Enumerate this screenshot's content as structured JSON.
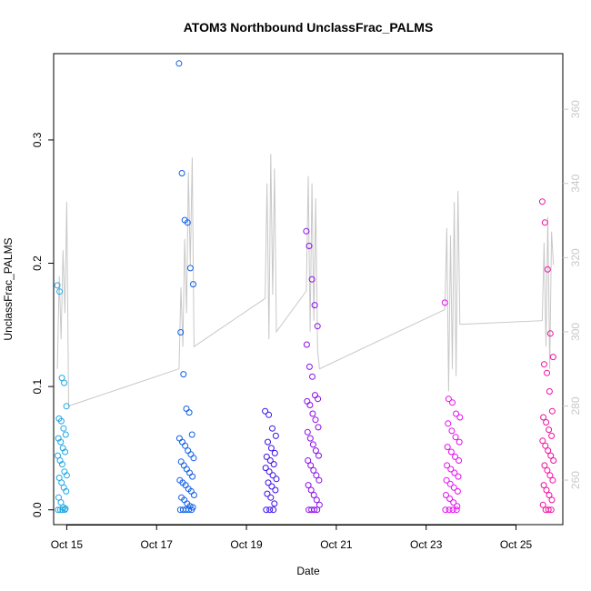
{
  "chart_data": {
    "type": "scatter",
    "title": "ATOM3 Northbound UnclassFrac_PALMS",
    "xlabel": "Date",
    "ylabel": "UnclassFrac_PALMS",
    "x_ticks": [
      "Oct 15",
      "Oct 17",
      "Oct 19",
      "Oct 21",
      "Oct 23",
      "Oct 25"
    ],
    "xlim": [
      "2017-10-14T17:00",
      "2017-10-26T01:00"
    ],
    "ylim": [
      -0.012,
      0.37
    ],
    "y_ticks": [
      0.0,
      0.1,
      0.2,
      0.3
    ],
    "y_tick_labels": [
      "0.0",
      "0.1",
      "0.2",
      "0.3"
    ],
    "y2lim": [
      248,
      375
    ],
    "y2_ticks": [
      260,
      280,
      300,
      320,
      340,
      360
    ],
    "y2_tick_labels": [
      "260",
      "280",
      "300",
      "320",
      "340",
      "360"
    ],
    "y2_color": "#c8c8c8",
    "point_colors": [
      "#1fa8e6",
      "#0f5fe8",
      "#3a10e6",
      "#8a0ee8",
      "#e30ef0",
      "#f20ea0"
    ],
    "grid": false,
    "legend": "none",
    "series": [
      {
        "x_range": [
          "2017-10-14T19:00",
          "2017-10-15T00:00"
        ],
        "points": [
          0.182,
          0.177,
          0.107,
          0.103,
          0.084,
          0.074,
          0.072,
          0.066,
          0.061,
          0.058,
          0.055,
          0.05,
          0.047,
          0.044,
          0.04,
          0.037,
          0.031,
          0.028,
          0.026,
          0.022,
          0.018,
          0.015,
          0.01,
          0.006,
          0.002,
          0.001,
          0.0,
          0.0,
          0.0,
          0.0
        ]
      },
      {
        "x_range": [
          "2017-10-17T12:00",
          "2017-10-17T20:00"
        ],
        "points": [
          0.362,
          0.273,
          0.235,
          0.233,
          0.196,
          0.183,
          0.144,
          0.11,
          0.082,
          0.079,
          0.061,
          0.058,
          0.055,
          0.052,
          0.048,
          0.045,
          0.042,
          0.039,
          0.036,
          0.033,
          0.03,
          0.027,
          0.024,
          0.022,
          0.02,
          0.017,
          0.015,
          0.012,
          0.01,
          0.008,
          0.005,
          0.003,
          0.002,
          0.0,
          0.0,
          0.0,
          0.0,
          0.0
        ]
      },
      {
        "x_range": [
          "2017-10-19T10:00",
          "2017-10-19T16:00"
        ],
        "points": [
          0.08,
          0.077,
          0.066,
          0.06,
          0.055,
          0.05,
          0.046,
          0.043,
          0.04,
          0.037,
          0.034,
          0.031,
          0.028,
          0.025,
          0.022,
          0.019,
          0.016,
          0.013,
          0.01,
          0.005,
          0.0,
          0.0,
          0.0
        ]
      },
      {
        "x_range": [
          "2017-10-20T08:00",
          "2017-10-20T15:00"
        ],
        "points": [
          0.226,
          0.214,
          0.187,
          0.166,
          0.149,
          0.134,
          0.116,
          0.108,
          0.093,
          0.09,
          0.088,
          0.085,
          0.078,
          0.073,
          0.067,
          0.063,
          0.058,
          0.053,
          0.048,
          0.044,
          0.04,
          0.036,
          0.032,
          0.028,
          0.024,
          0.02,
          0.016,
          0.012,
          0.008,
          0.004,
          0.0,
          0.0,
          0.0,
          0.0
        ]
      },
      {
        "x_range": [
          "2017-10-23T10:00",
          "2017-10-23T18:00"
        ],
        "points": [
          0.168,
          0.09,
          0.087,
          0.078,
          0.075,
          0.07,
          0.064,
          0.059,
          0.055,
          0.051,
          0.047,
          0.043,
          0.04,
          0.036,
          0.033,
          0.03,
          0.027,
          0.024,
          0.021,
          0.018,
          0.015,
          0.012,
          0.009,
          0.006,
          0.003,
          0.0,
          0.0,
          0.0,
          0.0
        ]
      },
      {
        "x_range": [
          "2017-10-25T14:00",
          "2017-10-25T20:00"
        ],
        "points": [
          0.25,
          0.233,
          0.195,
          0.143,
          0.124,
          0.118,
          0.111,
          0.096,
          0.08,
          0.075,
          0.071,
          0.065,
          0.06,
          0.056,
          0.052,
          0.048,
          0.044,
          0.04,
          0.036,
          0.032,
          0.028,
          0.024,
          0.02,
          0.016,
          0.012,
          0.008,
          0.004,
          0.0,
          0.0,
          0.0
        ]
      }
    ],
    "secondary_series": {
      "axis": "right",
      "color": "#c8c8c8",
      "points": [
        [
          "2017-10-14T19:00",
          290
        ],
        [
          "2017-10-14T20:00",
          315
        ],
        [
          "2017-10-14T21:00",
          298
        ],
        [
          "2017-10-14T22:00",
          322
        ],
        [
          "2017-10-14T23:00",
          305
        ],
        [
          "2017-10-15T00:00",
          335
        ],
        [
          "2017-10-15T01:00",
          280
        ],
        [
          "2017-10-17T12:00",
          290
        ],
        [
          "2017-10-17T13:00",
          312
        ],
        [
          "2017-10-17T14:00",
          296
        ],
        [
          "2017-10-17T15:00",
          325
        ],
        [
          "2017-10-17T16:00",
          305
        ],
        [
          "2017-10-17T17:00",
          343
        ],
        [
          "2017-10-17T18:00",
          318
        ],
        [
          "2017-10-17T19:00",
          347
        ],
        [
          "2017-10-17T20:00",
          296
        ],
        [
          "2017-10-19T10:00",
          309
        ],
        [
          "2017-10-19T11:00",
          340
        ],
        [
          "2017-10-19T12:00",
          298
        ],
        [
          "2017-10-19T13:00",
          348
        ],
        [
          "2017-10-19T14:00",
          310
        ],
        [
          "2017-10-19T15:00",
          344
        ],
        [
          "2017-10-19T16:00",
          300
        ],
        [
          "2017-10-20T08:00",
          311
        ],
        [
          "2017-10-20T09:00",
          342
        ],
        [
          "2017-10-20T10:00",
          300
        ],
        [
          "2017-10-20T11:00",
          340
        ],
        [
          "2017-10-20T12:00",
          303
        ],
        [
          "2017-10-20T13:00",
          336
        ],
        [
          "2017-10-20T14:00",
          295
        ],
        [
          "2017-10-20T15:00",
          290
        ],
        [
          "2017-10-23T10:00",
          306
        ],
        [
          "2017-10-23T11:00",
          328
        ],
        [
          "2017-10-23T12:00",
          284
        ],
        [
          "2017-10-23T13:00",
          326
        ],
        [
          "2017-10-23T14:00",
          290
        ],
        [
          "2017-10-23T15:00",
          335
        ],
        [
          "2017-10-23T16:00",
          288
        ],
        [
          "2017-10-23T17:00",
          338
        ],
        [
          "2017-10-23T18:00",
          302
        ],
        [
          "2017-10-25T14:00",
          303
        ],
        [
          "2017-10-25T15:00",
          324
        ],
        [
          "2017-10-25T16:00",
          296
        ],
        [
          "2017-10-25T17:00",
          331
        ],
        [
          "2017-10-25T18:00",
          290
        ],
        [
          "2017-10-25T19:00",
          327
        ],
        [
          "2017-10-25T20:00",
          318
        ]
      ]
    }
  }
}
